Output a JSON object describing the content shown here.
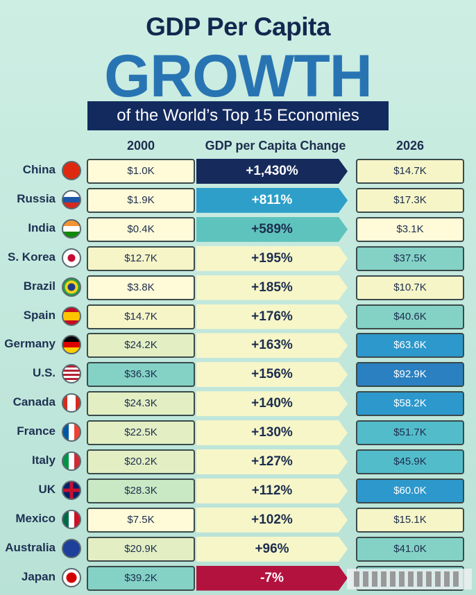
{
  "title_line1": "GDP Per Capita",
  "title_line2": "GROWTH",
  "subtitle": "of the World’s Top 15 Economies",
  "chart_data": {
    "type": "table",
    "columns": [
      "2000",
      "GDP per Capita Change",
      "2026"
    ],
    "rows": [
      {
        "country": "China",
        "flag": "china-flag",
        "v2000": "$1.0K",
        "change": "+1,430%",
        "v2026": "$14.7K"
      },
      {
        "country": "Russia",
        "flag": "russia-flag",
        "v2000": "$1.9K",
        "change": "+811%",
        "v2026": "$17.3K"
      },
      {
        "country": "India",
        "flag": "india-flag",
        "v2000": "$0.4K",
        "change": "+589%",
        "v2026": "$3.1K"
      },
      {
        "country": "S. Korea",
        "flag": "south-korea-flag",
        "v2000": "$12.7K",
        "change": "+195%",
        "v2026": "$37.5K"
      },
      {
        "country": "Brazil",
        "flag": "brazil-flag",
        "v2000": "$3.8K",
        "change": "+185%",
        "v2026": "$10.7K"
      },
      {
        "country": "Spain",
        "flag": "spain-flag",
        "v2000": "$14.7K",
        "change": "+176%",
        "v2026": "$40.6K"
      },
      {
        "country": "Germany",
        "flag": "germany-flag",
        "v2000": "$24.2K",
        "change": "+163%",
        "v2026": "$63.6K"
      },
      {
        "country": "U.S.",
        "flag": "usa-flag",
        "v2000": "$36.3K",
        "change": "+156%",
        "v2026": "$92.9K"
      },
      {
        "country": "Canada",
        "flag": "canada-flag",
        "v2000": "$24.3K",
        "change": "+140%",
        "v2026": "$58.2K"
      },
      {
        "country": "France",
        "flag": "france-flag",
        "v2000": "$22.5K",
        "change": "+130%",
        "v2026": "$51.7K"
      },
      {
        "country": "Italy",
        "flag": "italy-flag",
        "v2000": "$20.2K",
        "change": "+127%",
        "v2026": "$45.9K"
      },
      {
        "country": "UK",
        "flag": "uk-flag",
        "v2000": "$28.3K",
        "change": "+112%",
        "v2026": "$60.0K"
      },
      {
        "country": "Mexico",
        "flag": "mexico-flag",
        "v2000": "$7.5K",
        "change": "+102%",
        "v2026": "$15.1K"
      },
      {
        "country": "Australia",
        "flag": "australia-flag",
        "v2000": "$20.9K",
        "change": "+96%",
        "v2026": "$41.0K"
      },
      {
        "country": "Japan",
        "flag": "japan-flag",
        "v2000": "$39.2K",
        "change": "-7%",
        "v2026": ""
      }
    ]
  },
  "colors": {
    "title_dark": "#13284f",
    "title_blue": "#2874b3",
    "banner": "#132a5e",
    "negative": "#b3123f",
    "top_change": "#162a5c"
  }
}
